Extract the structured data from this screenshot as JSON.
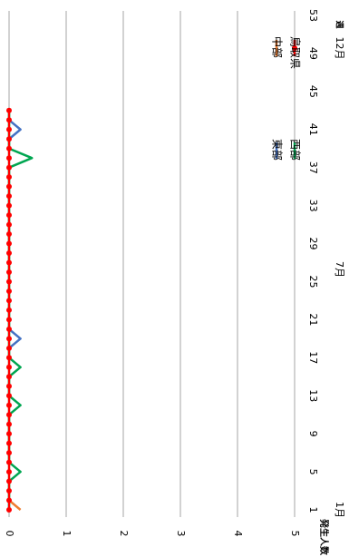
{
  "chart_data": {
    "type": "line",
    "orientation": "rotated-90-clockwise",
    "ylabel": "発生人数",
    "x_ticks": [
      "1",
      "5",
      "9",
      "13",
      "17",
      "21",
      "25",
      "29",
      "33",
      "37",
      "41",
      "45",
      "49",
      "53"
    ],
    "month_labels": [
      "1月",
      "7月",
      "12月"
    ],
    "xlabel_right": "週",
    "ylim": [
      0,
      5
    ],
    "y_ticks": [
      "0",
      "1",
      "2",
      "3",
      "4",
      "5"
    ],
    "grid": true,
    "legend_position": "upper-right",
    "x": [
      1,
      2,
      3,
      4,
      5,
      6,
      7,
      8,
      9,
      10,
      11,
      12,
      13,
      14,
      15,
      16,
      17,
      18,
      19,
      20,
      21,
      22,
      23,
      24,
      25,
      26,
      27,
      28,
      29,
      30,
      31,
      32,
      33,
      34,
      35,
      36,
      37,
      38,
      39,
      40,
      41,
      42,
      43
    ],
    "series": [
      {
        "name": "東部",
        "color": "#4472c4",
        "values": [
          0,
          0,
          0,
          0,
          0,
          0,
          0,
          0,
          0,
          0,
          0,
          0,
          0,
          0,
          0,
          0,
          0,
          0,
          0.2,
          0,
          0,
          0,
          0,
          0,
          0,
          0,
          0,
          0,
          0,
          0,
          0,
          0,
          0,
          0,
          0,
          0,
          0,
          0,
          0,
          0,
          0.2,
          0,
          0
        ]
      },
      {
        "name": "中部",
        "color": "#ed7d31",
        "values": [
          0.2,
          0,
          0,
          0,
          0,
          0,
          0,
          0,
          0,
          0,
          0,
          0,
          0,
          0,
          0,
          0,
          0,
          0,
          0,
          0,
          0,
          0,
          0,
          0,
          0,
          0,
          0,
          0,
          0,
          0,
          0,
          0,
          0,
          0,
          0,
          0,
          0,
          0,
          0,
          0,
          0,
          0,
          0
        ]
      },
      {
        "name": "西部",
        "color": "#00a651",
        "values": [
          0,
          0,
          0,
          0,
          0.2,
          0,
          0,
          0,
          0,
          0,
          0,
          0.2,
          0,
          0,
          0,
          0.2,
          0,
          0,
          0,
          0,
          0,
          0,
          0,
          0,
          0,
          0,
          0,
          0,
          0,
          0,
          0,
          0,
          0,
          0,
          0,
          0,
          0,
          0.4,
          0,
          0,
          0,
          0,
          0
        ]
      },
      {
        "name": "鳥取県",
        "color": "#ff0000",
        "marker": "circle",
        "values": [
          0,
          0,
          0,
          0,
          0,
          0,
          0,
          0,
          0,
          0,
          0,
          0,
          0,
          0,
          0,
          0,
          0,
          0,
          0,
          0,
          0,
          0,
          0,
          0,
          0,
          0,
          0,
          0,
          0,
          0,
          0,
          0,
          0,
          0,
          0,
          0,
          0,
          0,
          0,
          0,
          0,
          0,
          0
        ]
      }
    ]
  }
}
